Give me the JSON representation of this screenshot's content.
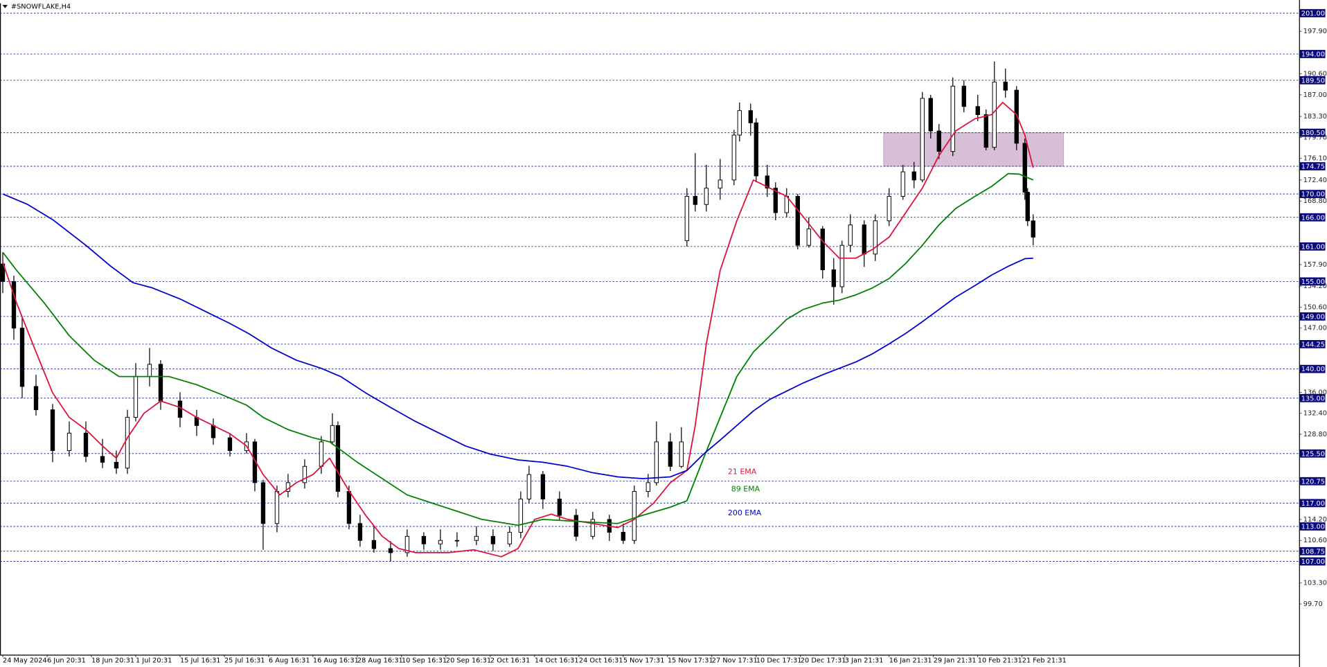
{
  "chart_data": {
    "type": "candlestick",
    "title": "#SNOWFLAKE,H4",
    "xlim": [
      -1,
      468
    ],
    "ylim": [
      91,
      202.7
    ],
    "xticks": [
      {
        "value": 0,
        "label": "24 May 2024"
      },
      {
        "value": 16,
        "label": "6 Jun 20:31"
      },
      {
        "value": 32,
        "label": "18 Jun 20:31"
      },
      {
        "value": 48,
        "label": "1 Jul 20:31"
      },
      {
        "value": 64,
        "label": "15 Jul 16:31"
      },
      {
        "value": 80,
        "label": "25 Jul 16:31"
      },
      {
        "value": 96,
        "label": "6 Aug 16:31"
      },
      {
        "value": 112,
        "label": "16 Aug 16:31"
      },
      {
        "value": 128,
        "label": "28 Aug 16:31"
      },
      {
        "value": 144,
        "label": "10 Sep 16:31"
      },
      {
        "value": 160,
        "label": "20 Sep 16:31"
      },
      {
        "value": 176,
        "label": "2 Oct 16:31"
      },
      {
        "value": 192,
        "label": "14 Oct 16:31"
      },
      {
        "value": 208,
        "label": "24 Oct 16:31"
      },
      {
        "value": 224,
        "label": "5 Nov 17:31"
      },
      {
        "value": 240,
        "label": "15 Nov 17:31"
      },
      {
        "value": 256,
        "label": "27 Nov 17:31"
      },
      {
        "value": 272,
        "label": "10 Dec 17:31"
      },
      {
        "value": 288,
        "label": "20 Dec 17:31"
      },
      {
        "value": 304,
        "label": "3 Jan 21:31"
      },
      {
        "value": 320,
        "label": "16 Jan 21:31"
      },
      {
        "value": 336,
        "label": "29 Jan 21:31"
      },
      {
        "value": 352,
        "label": "10 Feb 21:31"
      },
      {
        "value": 368,
        "label": "21 Feb 21:31"
      }
    ],
    "yticks": [
      {
        "value": 197.9,
        "label": "197.90"
      },
      {
        "value": 190.6,
        "label": "190.60"
      },
      {
        "value": 187.0,
        "label": "187.00"
      },
      {
        "value": 183.3,
        "label": "183.30"
      },
      {
        "value": 179.7,
        "label": "179.70"
      },
      {
        "value": 176.1,
        "label": "176.10"
      },
      {
        "value": 172.4,
        "label": "172.40"
      },
      {
        "value": 168.8,
        "label": "168.80"
      },
      {
        "value": 157.9,
        "label": "157.90"
      },
      {
        "value": 154.2,
        "label": "154.20"
      },
      {
        "value": 150.6,
        "label": "150.60"
      },
      {
        "value": 147.0,
        "label": "147.00"
      },
      {
        "value": 136.0,
        "label": "136.00"
      },
      {
        "value": 132.4,
        "label": "132.40"
      },
      {
        "value": 128.8,
        "label": "128.80"
      },
      {
        "value": 114.2,
        "label": "114.20"
      },
      {
        "value": 110.6,
        "label": "110.60"
      },
      {
        "value": 103.3,
        "label": "103.30"
      },
      {
        "value": 99.7,
        "label": "99.70"
      }
    ],
    "levels": [
      {
        "value": 201,
        "label": "201.00"
      },
      {
        "value": 194,
        "label": "194.00"
      },
      {
        "value": 189.5,
        "label": "189.50"
      },
      {
        "value": 180.5,
        "label": "180.50"
      },
      {
        "value": 174.75,
        "label": "174.75"
      },
      {
        "value": 170,
        "label": "170.00"
      },
      {
        "value": 166,
        "label": "166.00"
      },
      {
        "value": 161,
        "label": "161.00"
      },
      {
        "value": 155,
        "label": "155.00"
      },
      {
        "value": 149,
        "label": "149.00"
      },
      {
        "value": 144.25,
        "label": "144.25"
      },
      {
        "value": 140,
        "label": "140.00"
      },
      {
        "value": 135,
        "label": "135.00"
      },
      {
        "value": 125.5,
        "label": "125.50"
      },
      {
        "value": 120.75,
        "label": "120.75"
      },
      {
        "value": 117,
        "label": "117.00"
      },
      {
        "value": 113,
        "label": "113.00"
      },
      {
        "value": 108.75,
        "label": "108.75"
      },
      {
        "value": 107,
        "label": "107.00"
      }
    ],
    "level_color": "#0a0a80",
    "zone": {
      "x": [
        318,
        383
      ],
      "low": 174.75,
      "high": 180.5,
      "color": "#d8bfd8"
    },
    "bull_color": "#ffffff",
    "bear_color": "#000000",
    "x": [
      0,
      4,
      7,
      12,
      18,
      24,
      30,
      36,
      41,
      45,
      48,
      53,
      57,
      64,
      70,
      76,
      82,
      88,
      91,
      94,
      99,
      103,
      109,
      115,
      119,
      121,
      125,
      129,
      134,
      140,
      146,
      152,
      158,
      164,
      171,
      177,
      183,
      187,
      190,
      195,
      201,
      207,
      213,
      219,
      224,
      228,
      233,
      236,
      241,
      245,
      247,
      250,
      254,
      259,
      264,
      266,
      270,
      272,
      276,
      279,
      283,
      287,
      291,
      296,
      300,
      303,
      306,
      311,
      315,
      320,
      325,
      329,
      332,
      335,
      338,
      343,
      347,
      352,
      355,
      358,
      362,
      366,
      369,
      370,
      372
    ],
    "open": [
      158,
      155,
      147,
      137,
      133,
      126,
      129,
      125,
      124,
      123,
      131.7,
      138.7,
      140.8,
      134.5,
      131.7,
      130.3,
      128.2,
      126,
      127.5,
      120.5,
      113.5,
      119,
      120.5,
      123.3,
      127.5,
      130.3,
      119,
      113.5,
      110.6,
      109.2,
      108.5,
      111.3,
      110,
      110.6,
      110.6,
      111.3,
      110,
      112,
      117.7,
      121.9,
      117.7,
      114.9,
      111.3,
      114.2,
      112,
      110.6,
      119,
      120.5,
      127.5,
      123.3,
      162,
      169.6,
      168.2,
      171,
      172.4,
      180.1,
      184.3,
      182.2,
      173.1,
      171,
      166.8,
      169.6,
      161.2,
      164,
      157,
      154.1,
      161.2,
      164.7,
      159.7,
      165.4,
      169.6,
      173.8,
      172.4,
      186.4,
      180.8,
      177.3,
      188.5,
      185,
      183.6,
      178,
      189.2,
      187.8,
      178.7,
      170.3,
      165.4
    ],
    "high": [
      160,
      156,
      149,
      139,
      134,
      131,
      131,
      128,
      126,
      133,
      141,
      143.6,
      141.5,
      136,
      133,
      131.5,
      129,
      129,
      128,
      121,
      120,
      122,
      124.5,
      128.5,
      132.4,
      131,
      120,
      115,
      113,
      110.5,
      112.5,
      112,
      112.5,
      112,
      113,
      112.5,
      113,
      119,
      123.4,
      122.5,
      119,
      116,
      115.5,
      115,
      113.5,
      120,
      122,
      131,
      129,
      130,
      171,
      177,
      175,
      176,
      181,
      185.7,
      185.5,
      183,
      175,
      172,
      171,
      170,
      166,
      164.5,
      159,
      162,
      166.5,
      165.5,
      166.5,
      171,
      175,
      175.5,
      187.5,
      187,
      182,
      190,
      189.5,
      187,
      184.5,
      192.7,
      191.5,
      188.5,
      179.5,
      171,
      166.5
    ],
    "low": [
      153,
      145,
      135,
      132,
      124,
      125,
      124,
      123,
      122,
      122,
      131,
      137,
      133,
      130,
      128.5,
      127,
      125,
      125.5,
      119,
      109,
      112,
      118,
      119.5,
      122,
      127,
      118,
      112.5,
      109.5,
      108.5,
      107,
      107.8,
      109,
      109,
      109.5,
      109.8,
      108.8,
      109.5,
      111,
      117,
      116,
      114,
      110.5,
      110.8,
      110.5,
      110,
      110,
      118,
      120,
      122.5,
      123,
      161,
      167,
      167,
      169,
      171.5,
      179,
      180,
      172,
      169.5,
      165.5,
      166,
      160.5,
      160.8,
      155.5,
      151,
      153,
      160,
      157.5,
      158.5,
      164.5,
      169,
      171,
      172,
      179.5,
      176,
      176.5,
      184,
      182.5,
      177.5,
      177.5,
      186.5,
      177.5,
      169,
      164.5,
      161.2
    ],
    "close": [
      155,
      147,
      137,
      133,
      126,
      129,
      125,
      124,
      123,
      131.7,
      138.7,
      140.8,
      134.5,
      131.7,
      130.3,
      128.2,
      126,
      127.5,
      120.5,
      113.5,
      119,
      120.5,
      123.3,
      127.5,
      130.3,
      119,
      113.5,
      110.6,
      109.2,
      108.5,
      111.3,
      110,
      110.6,
      110.6,
      111.3,
      110,
      112,
      117.7,
      121.9,
      117.7,
      114.9,
      111.3,
      114.2,
      112,
      110.6,
      119,
      120.5,
      127.5,
      123.3,
      127.5,
      169.6,
      168.2,
      171,
      172.4,
      180.1,
      184.3,
      182.2,
      173.1,
      171,
      166.8,
      169.6,
      161.2,
      164,
      157,
      154.1,
      161.2,
      164.7,
      159.7,
      165.4,
      169.6,
      173.8,
      172.4,
      186.4,
      180.8,
      177.3,
      188.5,
      185,
      183.6,
      178,
      189.2,
      187.8,
      178.7,
      170.3,
      165.4,
      162.6
    ],
    "series": [
      {
        "name": "21 EMA",
        "color": "#dc143c",
        "x": [
          0,
          5,
          12,
          18,
          24,
          30,
          36,
          41,
          45,
          51,
          57,
          64,
          70,
          76,
          82,
          88,
          94,
          100,
          106,
          112,
          118,
          125,
          131,
          137,
          143,
          149,
          161,
          170,
          180,
          186,
          192,
          198,
          204,
          213,
          222,
          228,
          235,
          241,
          247,
          250,
          254,
          259,
          265,
          271,
          277,
          283,
          289,
          296,
          302,
          308,
          314,
          320,
          326,
          332,
          338,
          344,
          351,
          357,
          361,
          366,
          369,
          372
        ],
        "values": [
          158.3,
          151.3,
          142.9,
          135.9,
          131.7,
          129.6,
          126.8,
          124.7,
          128.2,
          132.4,
          134.5,
          133.4,
          131.7,
          130.3,
          128.9,
          126.8,
          121.9,
          118.4,
          120.5,
          121.9,
          124.7,
          119.1,
          114.9,
          111.3,
          109.2,
          108.5,
          108.5,
          109,
          107.8,
          109.2,
          114.2,
          115.1,
          114.2,
          113.5,
          112.8,
          114.2,
          117,
          120.5,
          122.6,
          130.3,
          144.3,
          156.9,
          165.4,
          172.4,
          171,
          169.6,
          166.1,
          161.9,
          159,
          159,
          160.5,
          162.6,
          166.8,
          171,
          176.6,
          180.8,
          182.9,
          183.6,
          185.7,
          183.6,
          180.1,
          174.5
        ]
      },
      {
        "name": "89 EMA",
        "color": "#008000",
        "x": [
          0,
          5,
          15,
          24,
          33,
          42,
          60,
          70,
          79,
          88,
          94,
          103,
          112,
          118,
          128,
          137,
          146,
          155,
          164,
          173,
          186,
          195,
          213,
          222,
          231,
          241,
          247,
          253,
          259,
          265,
          271,
          277,
          283,
          289,
          296,
          302,
          308,
          314,
          320,
          326,
          332,
          338,
          344,
          351,
          357,
          363,
          367,
          372
        ],
        "values": [
          160,
          156.9,
          151.3,
          145.7,
          141.5,
          138.7,
          138.7,
          137.3,
          135.6,
          133.8,
          131.7,
          129.6,
          128.2,
          127.5,
          124,
          121.2,
          118.4,
          117,
          115.6,
          114.2,
          113.2,
          114.2,
          113.7,
          113.5,
          114.9,
          116.3,
          117.4,
          124.7,
          131.7,
          138.7,
          142.9,
          145.7,
          148.5,
          150.2,
          151.3,
          151.8,
          152.7,
          153.9,
          155.5,
          158.1,
          161.2,
          164.7,
          167.5,
          169.6,
          171.3,
          173.5,
          173.4,
          172.4
        ]
      },
      {
        "name": "200 EMA",
        "color": "#0000cd",
        "x": [
          0,
          9,
          18,
          30,
          39,
          47,
          54,
          64,
          73,
          82,
          89,
          97,
          106,
          115,
          122,
          131,
          140,
          149,
          158,
          167,
          176,
          186,
          195,
          204,
          213,
          222,
          231,
          241,
          247,
          253,
          259,
          265,
          271,
          277,
          283,
          289,
          296,
          302,
          308,
          314,
          320,
          326,
          332,
          338,
          344,
          351,
          357,
          363,
          369,
          372
        ],
        "values": [
          170,
          168.2,
          165.6,
          161.2,
          157.6,
          154.8,
          153.9,
          152,
          149.9,
          147.8,
          146,
          143.6,
          141.5,
          140.1,
          138.7,
          135.9,
          133.4,
          131,
          128.9,
          126.8,
          125.4,
          124.4,
          124,
          123.3,
          122.2,
          121.5,
          121.2,
          121.5,
          122.6,
          125.4,
          127.8,
          130.3,
          132.8,
          134.8,
          136.2,
          137.6,
          139,
          140.1,
          141.2,
          142.6,
          144.3,
          146.1,
          148.1,
          150.2,
          152.3,
          154.3,
          156.1,
          157.6,
          158.9,
          159
        ]
      }
    ]
  }
}
